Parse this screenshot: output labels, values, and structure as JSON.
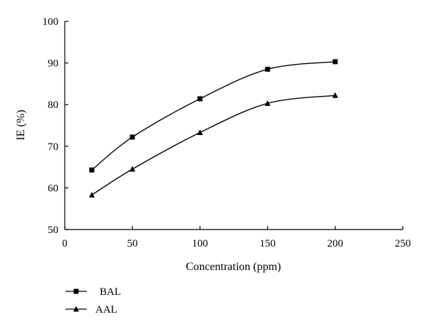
{
  "chart_data": {
    "type": "line",
    "xlabel": "Concentration (ppm)",
    "ylabel": "IE (%)",
    "xlim": [
      0,
      250
    ],
    "ylim": [
      50,
      100
    ],
    "x_ticks": [
      "0",
      "50",
      "100",
      "150",
      "200",
      "250"
    ],
    "y_ticks": [
      "50",
      "60",
      "70",
      "80",
      "90",
      "100"
    ],
    "grid": false,
    "legend_position": "bottom-left",
    "series": [
      {
        "name": "BAL",
        "marker": "square",
        "x": [
          20,
          50,
          100,
          150,
          200
        ],
        "y": [
          64.3,
          72.2,
          81.4,
          88.5,
          90.3
        ],
        "color": "#000000"
      },
      {
        "name": "AAL",
        "marker": "triangle",
        "x": [
          20,
          50,
          100,
          150,
          200
        ],
        "y": [
          58.3,
          64.5,
          73.3,
          80.3,
          82.2
        ],
        "color": "#000000"
      }
    ]
  }
}
